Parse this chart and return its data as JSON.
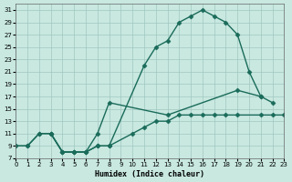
{
  "xlabel": "Humidex (Indice chaleur)",
  "bg_color": "#c8e8e0",
  "grid_color": "#a0c8c0",
  "line_color": "#1a6b5a",
  "xlim": [
    0,
    23
  ],
  "ylim": [
    7,
    32
  ],
  "xticks": [
    0,
    1,
    2,
    3,
    4,
    5,
    6,
    7,
    8,
    9,
    10,
    11,
    12,
    13,
    14,
    15,
    16,
    17,
    18,
    19,
    20,
    21,
    22,
    23
  ],
  "yticks": [
    7,
    9,
    11,
    13,
    15,
    17,
    19,
    21,
    23,
    25,
    27,
    29,
    31
  ],
  "upper_x": [
    0,
    1,
    2,
    3,
    4,
    5,
    6,
    7,
    8,
    11,
    12,
    13,
    14,
    15,
    16,
    17,
    18,
    19,
    20,
    21
  ],
  "upper_y": [
    9,
    9,
    11,
    11,
    8,
    8,
    8,
    9,
    9,
    22,
    25,
    26,
    29,
    30,
    31,
    30,
    29,
    27,
    21,
    17
  ],
  "lower_x": [
    0,
    1,
    2,
    3,
    4,
    5,
    6,
    7,
    8,
    10,
    11,
    12,
    13,
    14,
    15,
    16,
    17,
    18,
    19,
    21,
    22,
    23
  ],
  "lower_y": [
    9,
    9,
    11,
    11,
    8,
    8,
    8,
    9,
    9,
    11,
    12,
    13,
    13,
    14,
    14,
    14,
    14,
    14,
    14,
    14,
    14,
    14
  ],
  "mid_x": [
    3,
    4,
    5,
    6,
    7,
    8,
    13,
    19,
    21,
    22
  ],
  "mid_y": [
    11,
    8,
    8,
    8,
    11,
    16,
    14,
    18,
    17,
    16
  ]
}
